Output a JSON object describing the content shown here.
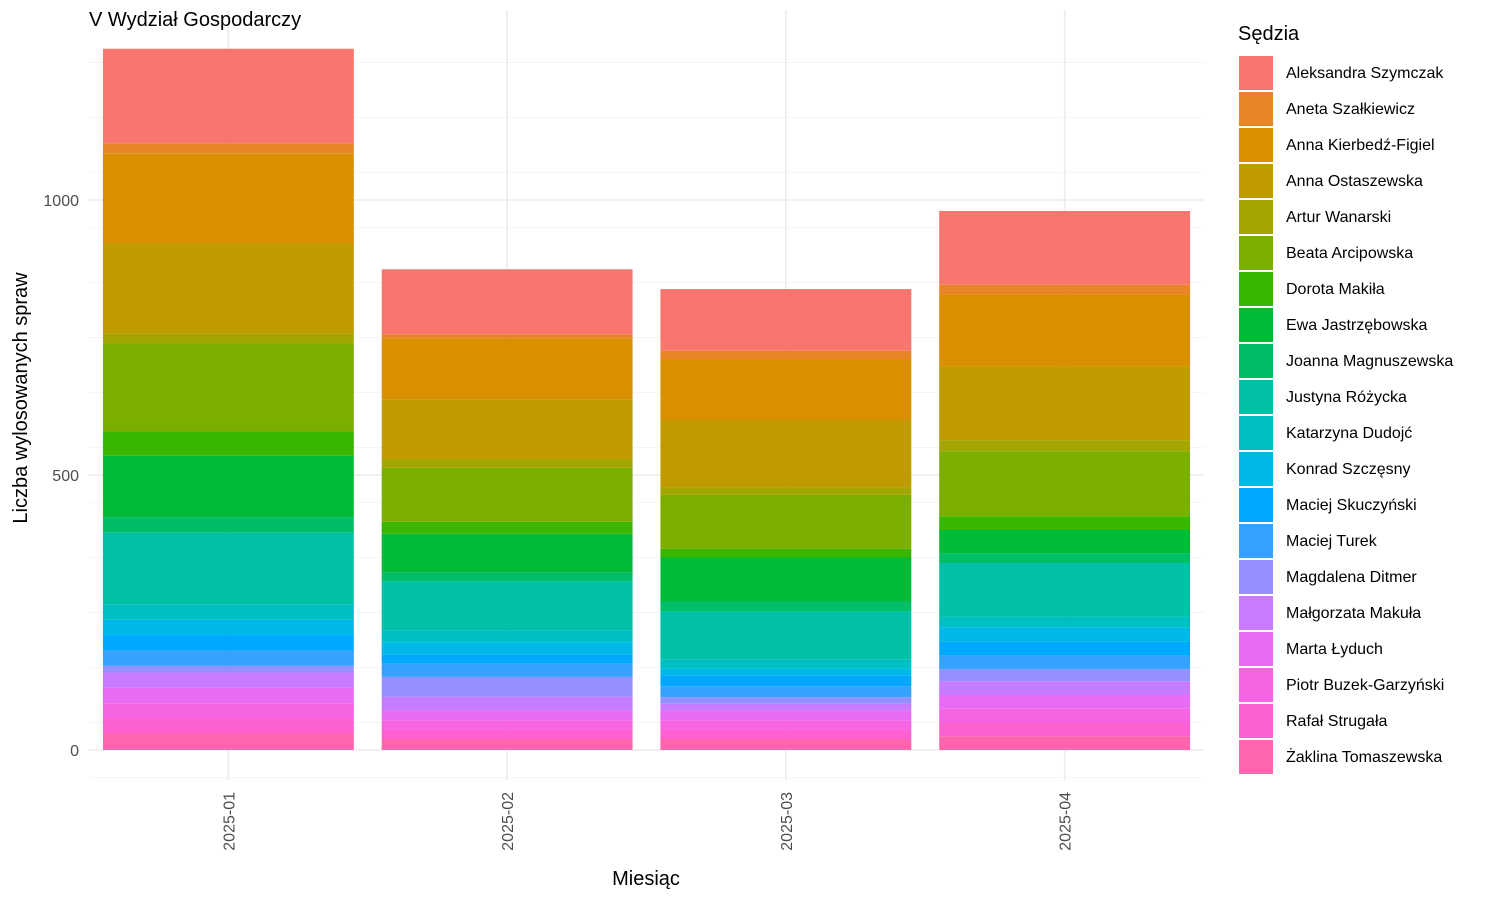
{
  "chart_data": {
    "type": "bar",
    "stacked": true,
    "title": "V Wydział Gospodarczy",
    "xlabel": "Miesiąc",
    "ylabel": "Liczba wylosowanych spraw",
    "ylim": [
      -50,
      1300
    ],
    "yticks": [
      0,
      500,
      1000
    ],
    "grid": true,
    "legend_position": "right",
    "legend_title": "Sędzia",
    "categories": [
      "2025-01",
      "2025-02",
      "2025-03",
      "2025-04"
    ],
    "series": [
      {
        "name": "Żaklina Tomaszewska",
        "color": "#FF65AC",
        "values": [
          30,
          20,
          20,
          25
        ]
      },
      {
        "name": "Rafał Strugała",
        "color": "#FD61D1",
        "values": [
          28,
          18,
          18,
          25
        ]
      },
      {
        "name": "Piotr Buzek-Garzyński",
        "color": "#F564E3",
        "values": [
          27,
          16,
          16,
          25
        ]
      },
      {
        "name": "Marta Łyduch",
        "color": "#E76BF3",
        "values": [
          28,
          18,
          18,
          25
        ]
      },
      {
        "name": "Małgorzata Makuła",
        "color": "#C77CFF",
        "values": [
          28,
          25,
          12,
          25
        ]
      },
      {
        "name": "Magdalena Ditmer",
        "color": "#9590FF",
        "values": [
          12,
          36,
          12,
          22
        ]
      },
      {
        "name": "Maciej Turek",
        "color": "#35A2FF",
        "values": [
          28,
          24,
          20,
          25
        ]
      },
      {
        "name": "Maciej Skuczyński",
        "color": "#00A9FF",
        "values": [
          28,
          16,
          20,
          25
        ]
      },
      {
        "name": "Konrad Szczęsny",
        "color": "#00B8E7",
        "values": [
          28,
          23,
          12,
          26
        ]
      },
      {
        "name": "Katarzyna Dudojć",
        "color": "#00BFC4",
        "values": [
          28,
          22,
          16,
          19
        ]
      },
      {
        "name": "Justyna Różycka",
        "color": "#00C1A7",
        "values": [
          130,
          89,
          88,
          98
        ]
      },
      {
        "name": "Joanna Magnuszewska",
        "color": "#00BE67",
        "values": [
          28,
          16,
          18,
          18
        ]
      },
      {
        "name": "Ewa Jastrzębowska",
        "color": "#00BA38",
        "values": [
          112,
          70,
          80,
          42
        ]
      },
      {
        "name": "Dorota Makiła",
        "color": "#39B600",
        "values": [
          44,
          22,
          16,
          25
        ]
      },
      {
        "name": "Beata Arcipowska",
        "color": "#7CAE00",
        "values": [
          160,
          98,
          98,
          118
        ]
      },
      {
        "name": "Artur Wanarski",
        "color": "#A3A500",
        "values": [
          18,
          16,
          14,
          20
        ]
      },
      {
        "name": "Anna Ostaszewska",
        "color": "#C09B00",
        "values": [
          164,
          108,
          122,
          135
        ]
      },
      {
        "name": "Anna Kierbedź-Figiel",
        "color": "#D89000",
        "values": [
          164,
          111,
          110,
          130
        ]
      },
      {
        "name": "Aneta Szałkiewicz",
        "color": "#E88526",
        "values": [
          18,
          8,
          16,
          18
        ]
      },
      {
        "name": "Aleksandra Szymczak",
        "color": "#F8766D",
        "values": [
          172,
          118,
          112,
          134
        ]
      }
    ]
  }
}
